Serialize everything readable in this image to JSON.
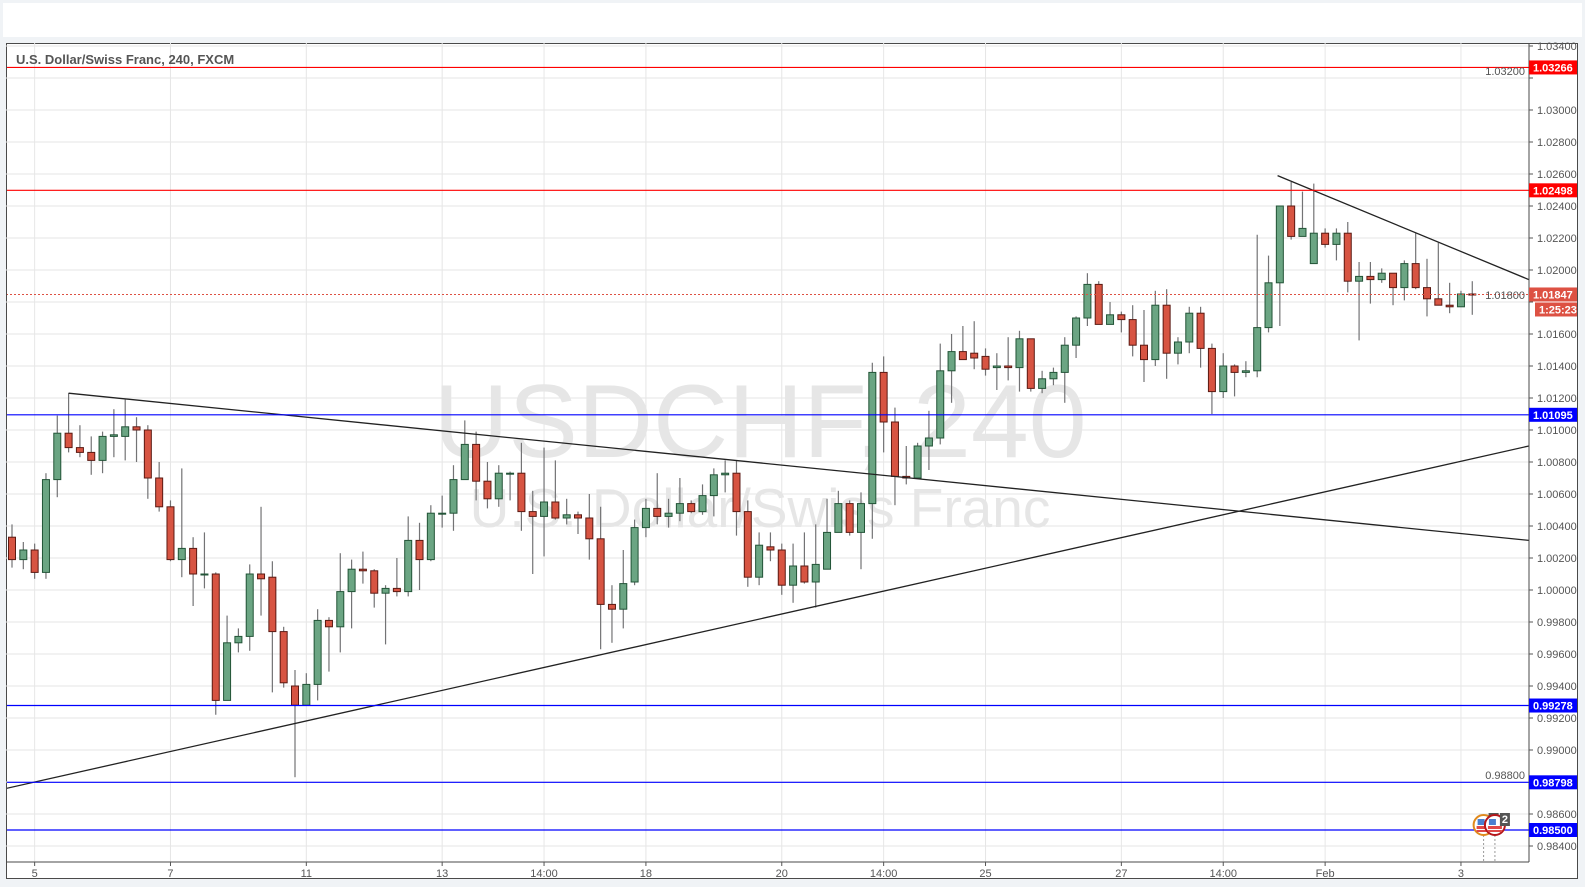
{
  "toolbar": {},
  "chart_data": {
    "type": "candlestick",
    "title": "U.S. Dollar/Swiss Franc, 240, FXCM",
    "watermark": {
      "symbol": "USDCHF, 240",
      "description": "U.S. Dollar/Swiss Franc"
    },
    "ylim": [
      0.984,
      1.034
    ],
    "grid": true,
    "colors": {
      "up": "#6ba583",
      "up_border": "#225437",
      "down": "#d75442",
      "down_border": "#5b1a13",
      "wick": "#737375",
      "grid": "#e6e6e6"
    },
    "candle_fields": [
      "open",
      "high",
      "low",
      "close"
    ],
    "candles": [
      [
        1.0033,
        1.0041,
        1.0014,
        1.0019
      ],
      [
        1.0019,
        1.003,
        1.0013,
        1.0025
      ],
      [
        1.0025,
        1.0029,
        1.0007,
        1.0011
      ],
      [
        1.0011,
        1.0073,
        1.0007,
        1.0069
      ],
      [
        1.0069,
        1.0109,
        1.0058,
        1.0098
      ],
      [
        1.0098,
        1.0123,
        1.0086,
        1.0089
      ],
      [
        1.0089,
        1.0103,
        1.0083,
        1.0086
      ],
      [
        1.0086,
        1.0096,
        1.0072,
        1.0081
      ],
      [
        1.0081,
        1.0099,
        1.0073,
        1.0096
      ],
      [
        1.0096,
        1.0113,
        1.0083,
        1.0097
      ],
      [
        1.0096,
        1.0119,
        1.0081,
        1.0102
      ],
      [
        1.0102,
        1.0108,
        1.008,
        1.01
      ],
      [
        1.01,
        1.0103,
        1.0057,
        1.007
      ],
      [
        1.007,
        1.008,
        1.0049,
        1.0052
      ],
      [
        1.0052,
        1.0056,
        1.0018,
        1.0019
      ],
      [
        1.0019,
        1.0076,
        1.0008,
        1.0026
      ],
      [
        1.0026,
        1.0033,
        0.999,
        1.001
      ],
      [
        1.001,
        1.0036,
        1.0001,
        1.001
      ],
      [
        1.001,
        1.0011,
        0.9922,
        0.9931
      ],
      [
        0.9931,
        0.9984,
        0.9931,
        0.9967
      ],
      [
        0.9967,
        0.9976,
        0.9961,
        0.9971
      ],
      [
        0.9971,
        1.0016,
        0.9962,
        1.001
      ],
      [
        1.001,
        1.0052,
        0.9984,
        1.0007
      ],
      [
        1.0008,
        1.0018,
        0.9936,
        0.9974
      ],
      [
        0.9974,
        0.9977,
        0.9939,
        0.9942
      ],
      [
        0.994,
        0.995,
        0.9883,
        0.9928
      ],
      [
        0.9928,
        0.9948,
        0.9928,
        0.9941
      ],
      [
        0.9941,
        0.9988,
        0.9931,
        0.9981
      ],
      [
        0.9981,
        0.9983,
        0.9949,
        0.9977
      ],
      [
        0.9977,
        1.0023,
        0.9961,
        0.9999
      ],
      [
        0.9999,
        1.0019,
        0.9976,
        1.0013
      ],
      [
        1.0013,
        1.0024,
        1.0004,
        1.0012
      ],
      [
        1.0012,
        1.0013,
        0.9989,
        0.9998
      ],
      [
        0.9998,
        1.0003,
        0.9966,
        1.0001
      ],
      [
        1.0001,
        1.002,
        0.9996,
        0.9999
      ],
      [
        0.9999,
        1.0046,
        0.9996,
        1.0031
      ],
      [
        1.0031,
        1.0042,
        1.0,
        1.0019
      ],
      [
        1.0019,
        1.0053,
        1.0018,
        1.0048
      ],
      [
        1.0048,
        1.0059,
        1.0039,
        1.0048
      ],
      [
        1.0048,
        1.0078,
        1.0037,
        1.0069
      ],
      [
        1.0069,
        1.0106,
        1.0069,
        1.0091
      ],
      [
        1.0091,
        1.0099,
        1.0056,
        1.0068
      ],
      [
        1.0068,
        1.008,
        1.0051,
        1.0057
      ],
      [
        1.0057,
        1.0078,
        1.0052,
        1.0073
      ],
      [
        1.0073,
        1.0074,
        1.0056,
        1.0073
      ],
      [
        1.0073,
        1.0092,
        1.0037,
        1.0049
      ],
      [
        1.0049,
        1.0062,
        1.001,
        1.0046
      ],
      [
        1.0046,
        1.0089,
        1.0021,
        1.0055
      ],
      [
        1.0055,
        1.0081,
        1.0044,
        1.0045
      ],
      [
        1.0045,
        1.0057,
        1.0041,
        1.0047
      ],
      [
        1.0047,
        1.0049,
        1.0035,
        1.0045
      ],
      [
        1.0045,
        1.006,
        1.0019,
        1.0032
      ],
      [
        1.0032,
        1.0052,
        0.9963,
        0.9991
      ],
      [
        0.9991,
        1.0003,
        0.9967,
        0.9988
      ],
      [
        0.9988,
        1.0025,
        0.9976,
        1.0004
      ],
      [
        1.0005,
        1.0044,
        1.0003,
        1.0039
      ],
      [
        1.0039,
        1.0057,
        1.0033,
        1.0051
      ],
      [
        1.0051,
        1.0073,
        1.0041,
        1.0046
      ],
      [
        1.0046,
        1.0057,
        1.0039,
        1.0048
      ],
      [
        1.0048,
        1.007,
        1.0043,
        1.0054
      ],
      [
        1.0054,
        1.0056,
        1.0048,
        1.0049
      ],
      [
        1.0049,
        1.0066,
        1.0047,
        1.0059
      ],
      [
        1.0059,
        1.0076,
        1.0046,
        1.0072
      ],
      [
        1.0072,
        1.0081,
        1.0061,
        1.0073
      ],
      [
        1.0073,
        1.0081,
        1.0034,
        1.0049
      ],
      [
        1.0049,
        1.0056,
        1.0002,
        1.0008
      ],
      [
        1.0008,
        1.0036,
        1.0003,
        1.0028
      ],
      [
        1.0027,
        1.0036,
        1.0018,
        1.0025
      ],
      [
        1.0025,
        1.0029,
        0.9997,
        1.0003
      ],
      [
        1.0003,
        1.0029,
        0.9992,
        1.0015
      ],
      [
        1.0015,
        1.0036,
        1.0004,
        1.0005
      ],
      [
        1.0005,
        1.0041,
        0.9989,
        1.0016
      ],
      [
        1.0013,
        1.0057,
        1.0013,
        1.0036
      ],
      [
        1.0036,
        1.0062,
        1.0036,
        1.0054
      ],
      [
        1.0054,
        1.0056,
        1.0034,
        1.0036
      ],
      [
        1.0036,
        1.0061,
        1.0013,
        1.0054
      ],
      [
        1.0054,
        1.0142,
        1.0032,
        1.0136
      ],
      [
        1.0136,
        1.0146,
        1.0086,
        1.0105
      ],
      [
        1.0105,
        1.0114,
        1.0053,
        1.0071
      ],
      [
        1.0071,
        1.009,
        1.0066,
        1.007
      ],
      [
        1.007,
        1.0092,
        1.007,
        1.009
      ],
      [
        1.009,
        1.0112,
        1.0075,
        1.0095
      ],
      [
        1.0095,
        1.0154,
        1.0091,
        1.0137
      ],
      [
        1.0137,
        1.016,
        1.0117,
        1.0149
      ],
      [
        1.0149,
        1.0165,
        1.0144,
        1.0144
      ],
      [
        1.0148,
        1.0168,
        1.0138,
        1.0145
      ],
      [
        1.0146,
        1.0151,
        1.0134,
        1.0138
      ],
      [
        1.0139,
        1.0148,
        1.0125,
        1.014
      ],
      [
        1.014,
        1.0158,
        1.0131,
        1.0139
      ],
      [
        1.0139,
        1.0162,
        1.0124,
        1.0157
      ],
      [
        1.0157,
        1.0157,
        1.0124,
        1.0126
      ],
      [
        1.0126,
        1.0137,
        1.0123,
        1.0132
      ],
      [
        1.0132,
        1.0139,
        1.0128,
        1.0136
      ],
      [
        1.0136,
        1.0158,
        1.0117,
        1.0153
      ],
      [
        1.0153,
        1.0171,
        1.0145,
        1.017
      ],
      [
        1.017,
        1.0198,
        1.0165,
        1.0191
      ],
      [
        1.0191,
        1.0193,
        1.0166,
        1.0166
      ],
      [
        1.0166,
        1.018,
        1.0166,
        1.0172
      ],
      [
        1.0172,
        1.0174,
        1.0161,
        1.0169
      ],
      [
        1.0169,
        1.0178,
        1.0146,
        1.0153
      ],
      [
        1.0153,
        1.0175,
        1.013,
        1.0144
      ],
      [
        1.0144,
        1.0187,
        1.014,
        1.0178
      ],
      [
        1.0178,
        1.0188,
        1.0132,
        1.0148
      ],
      [
        1.0148,
        1.0158,
        1.0141,
        1.0155
      ],
      [
        1.0155,
        1.0177,
        1.0148,
        1.0173
      ],
      [
        1.0173,
        1.0177,
        1.0139,
        1.0151
      ],
      [
        1.0151,
        1.0154,
        1.011,
        1.0124
      ],
      [
        1.0124,
        1.0148,
        1.012,
        1.014
      ],
      [
        1.014,
        1.0141,
        1.0121,
        1.0136
      ],
      [
        1.0136,
        1.0143,
        1.0133,
        1.0137
      ],
      [
        1.0137,
        1.0222,
        1.0133,
        1.0164
      ],
      [
        1.0164,
        1.0209,
        1.0161,
        1.0192
      ],
      [
        1.0192,
        1.024,
        1.0165,
        1.024
      ],
      [
        1.024,
        1.0255,
        1.0219,
        1.0221
      ],
      [
        1.0221,
        1.0249,
        1.0221,
        1.0226
      ],
      [
        1.0204,
        1.0254,
        1.0204,
        1.0223
      ],
      [
        1.0223,
        1.0226,
        1.0214,
        1.0216
      ],
      [
        1.0216,
        1.0226,
        1.0206,
        1.0223
      ],
      [
        1.0223,
        1.023,
        1.0186,
        1.0193
      ],
      [
        1.0193,
        1.0205,
        1.0156,
        1.0196
      ],
      [
        1.0196,
        1.0205,
        1.0179,
        1.0194
      ],
      [
        1.0194,
        1.0201,
        1.0192,
        1.0198
      ],
      [
        1.0198,
        1.0198,
        1.0178,
        1.0189
      ],
      [
        1.0189,
        1.0206,
        1.0181,
        1.0204
      ],
      [
        1.0204,
        1.0223,
        1.0188,
        1.0189
      ],
      [
        1.0189,
        1.0207,
        1.0171,
        1.0182
      ],
      [
        1.0182,
        1.0217,
        1.0178,
        1.0178
      ],
      [
        1.0178,
        1.0192,
        1.0173,
        1.0177
      ],
      [
        1.0177,
        1.0187,
        1.0177,
        1.0185
      ],
      [
        1.0185,
        1.0193,
        1.0172,
        1.01847
      ]
    ],
    "x_ticks": [
      {
        "label": "5",
        "bar": 2
      },
      {
        "label": "7",
        "bar": 14
      },
      {
        "label": "11",
        "bar": 26
      },
      {
        "label": "13",
        "bar": 38
      },
      {
        "label": "14:00",
        "bar": 47
      },
      {
        "label": "18",
        "bar": 56
      },
      {
        "label": "20",
        "bar": 68
      },
      {
        "label": "14:00",
        "bar": 77
      },
      {
        "label": "25",
        "bar": 86
      },
      {
        "label": "27",
        "bar": 98
      },
      {
        "label": "14:00",
        "bar": 107
      },
      {
        "label": "Feb",
        "bar": 116
      },
      {
        "label": "3",
        "bar": 128
      }
    ],
    "y_ticks": [
      "1.03400",
      "1.03200",
      "1.03000",
      "1.02800",
      "1.02600",
      "1.02400",
      "1.02200",
      "1.02000",
      "1.01800",
      "1.01600",
      "1.01400",
      "1.01200",
      "1.01000",
      "1.00800",
      "1.00600",
      "1.00400",
      "1.00200",
      "1.00000",
      "0.99800",
      "0.99600",
      "0.99400",
      "0.99200",
      "0.99000",
      "0.98800",
      "0.98600",
      "0.98400"
    ],
    "horizontal_lines": [
      {
        "price": 1.03266,
        "label": "1.03266",
        "color": "#ff0000"
      },
      {
        "price": 1.02498,
        "label": "1.02498",
        "color": "#ff0000"
      },
      {
        "price": 1.01095,
        "label": "1.01095",
        "color": "#0000ff"
      },
      {
        "price": 0.99278,
        "label": "0.99278",
        "color": "#0000ff"
      },
      {
        "price": 0.98798,
        "label": "0.98798",
        "color": "#0000ff"
      },
      {
        "price": 0.985,
        "label": "0.98500",
        "color": "#0000ff"
      }
    ],
    "last_price": {
      "price": 1.01847,
      "label": "1.01847",
      "countdown": "1:25:23",
      "color": "#dd5143"
    },
    "trend_lines": [
      {
        "from": {
          "bar": 5,
          "price": 1.0123
        },
        "to": {
          "bar": 134,
          "price": 1.0031
        }
      },
      {
        "from": {
          "bar": -0.5,
          "price": 0.9876
        },
        "to": {
          "bar": 134,
          "price": 1.009
        }
      },
      {
        "from": {
          "bar": 111.8,
          "price": 1.0259
        },
        "to": {
          "bar": 134,
          "price": 1.0194
        }
      }
    ],
    "events": [
      {
        "bar": 130,
        "count": "2",
        "ring": "#e08a1e"
      },
      {
        "bar": 131,
        "count": "2",
        "ring": "#b5171b"
      }
    ]
  }
}
